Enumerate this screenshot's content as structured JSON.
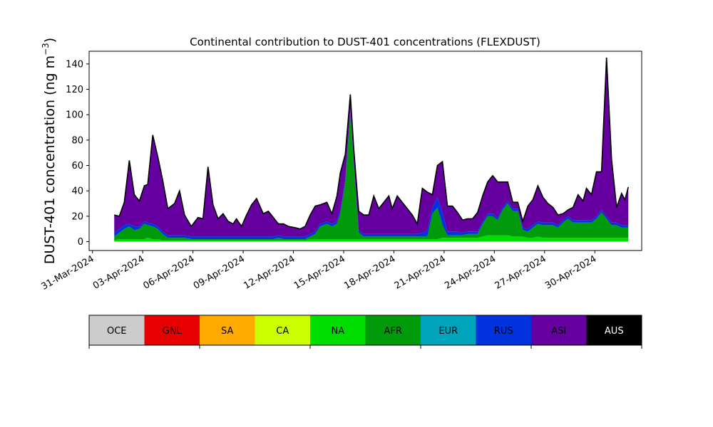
{
  "chart_data": {
    "type": "area",
    "stacked": true,
    "title": "Continental contribution to DUST-401 concentrations (FLEXDUST)",
    "ylabel": "DUST-401 concentration (ng m",
    "ylabel_superscript": "−3",
    "ylabel_suffix": ")",
    "xlabel": "",
    "ylim": [
      -7,
      150
    ],
    "yticks": [
      "0",
      "20",
      "40",
      "60",
      "80",
      "100",
      "120",
      "140"
    ],
    "xticks": [
      {
        "day": 0,
        "label": "31-Mar-2024"
      },
      {
        "day": 3,
        "label": "03-Apr-2024"
      },
      {
        "day": 6,
        "label": "06-Apr-2024"
      },
      {
        "day": 9,
        "label": "09-Apr-2024"
      },
      {
        "day": 12,
        "label": "12-Apr-2024"
      },
      {
        "day": 15,
        "label": "15-Apr-2024"
      },
      {
        "day": 18,
        "label": "18-Apr-2024"
      },
      {
        "day": 21,
        "label": "21-Apr-2024"
      },
      {
        "day": 24,
        "label": "24-Apr-2024"
      },
      {
        "day": 27,
        "label": "27-Apr-2024"
      },
      {
        "day": 30,
        "label": "30-Apr-2024"
      }
    ],
    "xlim_days": [
      -0.2,
      32.8
    ],
    "grid": false,
    "legend": {
      "placement": "bottom",
      "entries": [
        {
          "name": "OCE",
          "color": "#cccccc",
          "text_color": "#000000"
        },
        {
          "name": "GNL",
          "color": "#e60000",
          "text_color": "#000000"
        },
        {
          "name": "SA",
          "color": "#ffaa00",
          "text_color": "#000000"
        },
        {
          "name": "CA",
          "color": "#ccff00",
          "text_color": "#000000"
        },
        {
          "name": "NA",
          "color": "#00dd00",
          "text_color": "#000000"
        },
        {
          "name": "AFR",
          "color": "#009a0a",
          "text_color": "#000000"
        },
        {
          "name": "EUR",
          "color": "#00a5bb",
          "text_color": "#000000"
        },
        {
          "name": "RUS",
          "color": "#0033dd",
          "text_color": "#000000"
        },
        {
          "name": "ASI",
          "color": "#6600a0",
          "text_color": "#000000"
        },
        {
          "name": "AUS",
          "color": "#000000",
          "text_color": "#ffffff"
        }
      ]
    },
    "x_days": [
      1.3,
      1.6,
      1.9,
      2.2,
      2.5,
      2.8,
      3.1,
      3.3,
      3.6,
      3.9,
      4.2,
      4.5,
      4.7,
      4.9,
      5.2,
      5.5,
      5.9,
      6.3,
      6.6,
      6.9,
      7.2,
      7.5,
      7.8,
      8.1,
      8.4,
      8.6,
      8.9,
      9.2,
      9.5,
      9.8,
      10.2,
      10.5,
      10.8,
      11.1,
      11.4,
      11.7,
      12.1,
      12.4,
      12.7,
      13.0,
      13.3,
      13.6,
      14.0,
      14.3,
      14.6,
      14.8,
      15.1,
      15.4,
      15.6,
      15.9,
      16.2,
      16.5,
      16.8,
      17.1,
      17.4,
      17.7,
      17.9,
      18.2,
      18.5,
      18.8,
      19.1,
      19.4,
      19.7,
      20.0,
      20.3,
      20.6,
      20.9,
      21.2,
      21.5,
      21.8,
      22.1,
      22.4,
      22.7,
      23.0,
      23.3,
      23.6,
      23.9,
      24.2,
      24.5,
      24.8,
      25.1,
      25.4,
      25.7,
      26.0,
      26.3,
      26.6,
      26.9,
      27.2,
      27.5,
      27.8,
      28.1,
      28.4,
      28.7,
      29.0,
      29.3,
      29.5,
      29.8,
      30.1,
      30.4,
      30.7,
      31.0,
      31.3,
      31.6,
      31.8,
      32.0
    ],
    "series": [
      {
        "name": "NA",
        "values": [
          1,
          2,
          2,
          2,
          2,
          2,
          2,
          3,
          2,
          2,
          1,
          1,
          1,
          1,
          1,
          1,
          1,
          1,
          1,
          1,
          1,
          1,
          1,
          1,
          1,
          1,
          1,
          1,
          1,
          1,
          1,
          1,
          1,
          1,
          1,
          1,
          1,
          1,
          1,
          2,
          2,
          2,
          2,
          2,
          2,
          2,
          2,
          2,
          2,
          2,
          2,
          2,
          2,
          2,
          2,
          2,
          2,
          2,
          2,
          2,
          2,
          2,
          2,
          2,
          2,
          2,
          3,
          3,
          3,
          3,
          3,
          3,
          3,
          3,
          4,
          5,
          5,
          5,
          5,
          5,
          4,
          4,
          4,
          3,
          3,
          4,
          3,
          3,
          3,
          3,
          3,
          3,
          3,
          3,
          3,
          3,
          3,
          3,
          3,
          3,
          3,
          3,
          3,
          3,
          3
        ]
      },
      {
        "name": "AFR",
        "values": [
          3,
          5,
          8,
          10,
          7,
          8,
          12,
          10,
          10,
          8,
          5,
          2,
          2,
          2,
          2,
          2,
          1,
          1,
          1,
          1,
          1,
          1,
          1,
          1,
          1,
          1,
          1,
          1,
          1,
          1,
          1,
          1,
          1,
          2,
          1,
          1,
          1,
          1,
          1,
          2,
          4,
          10,
          12,
          10,
          12,
          20,
          45,
          100,
          60,
          5,
          2,
          2,
          2,
          2,
          2,
          2,
          2,
          2,
          2,
          2,
          2,
          2,
          2,
          2,
          20,
          25,
          10,
          2,
          2,
          2,
          2,
          3,
          3,
          3,
          10,
          15,
          15,
          12,
          20,
          25,
          20,
          20,
          5,
          5,
          8,
          10,
          10,
          10,
          10,
          8,
          12,
          15,
          12,
          12,
          12,
          12,
          12,
          15,
          20,
          15,
          10,
          10,
          8,
          8,
          8
        ]
      },
      {
        "name": "RUS",
        "values": [
          3,
          3,
          3,
          2,
          3,
          2,
          2,
          2,
          2,
          2,
          2,
          2,
          2,
          2,
          2,
          2,
          2,
          2,
          2,
          2,
          2,
          2,
          2,
          2,
          2,
          2,
          2,
          2,
          2,
          2,
          2,
          2,
          2,
          2,
          2,
          2,
          2,
          2,
          2,
          2,
          2,
          2,
          2,
          2,
          2,
          2,
          2,
          2,
          2,
          2,
          2,
          2,
          2,
          2,
          2,
          2,
          2,
          2,
          2,
          2,
          2,
          2,
          3,
          5,
          5,
          8,
          10,
          3,
          3,
          3,
          2,
          2,
          2,
          2,
          2,
          2,
          2,
          2,
          2,
          2,
          2,
          2,
          2,
          2,
          2,
          2,
          2,
          2,
          2,
          2,
          2,
          2,
          2,
          2,
          2,
          2,
          2,
          2,
          2,
          2,
          2,
          2,
          2,
          2,
          2
        ]
      },
      {
        "name": "ASI",
        "values": [
          14,
          10,
          18,
          50,
          25,
          20,
          28,
          30,
          70,
          55,
          40,
          21,
          23,
          25,
          35,
          16,
          8,
          15,
          14,
          55,
          25,
          14,
          18,
          12,
          10,
          14,
          8,
          17,
          25,
          30,
          18,
          20,
          15,
          9,
          10,
          8,
          7,
          6,
          8,
          15,
          20,
          15,
          15,
          8,
          20,
          30,
          20,
          12,
          10,
          15,
          15,
          15,
          30,
          20,
          25,
          30,
          20,
          30,
          25,
          20,
          15,
          8,
          35,
          30,
          10,
          25,
          40,
          20,
          20,
          15,
          10,
          10,
          10,
          15,
          20,
          25,
          30,
          28,
          20,
          15,
          5,
          5,
          5,
          18,
          20,
          28,
          20,
          15,
          12,
          8,
          5,
          5,
          10,
          20,
          15,
          25,
          20,
          35,
          30,
          125,
          50,
          12,
          25,
          20,
          30
        ]
      }
    ]
  }
}
